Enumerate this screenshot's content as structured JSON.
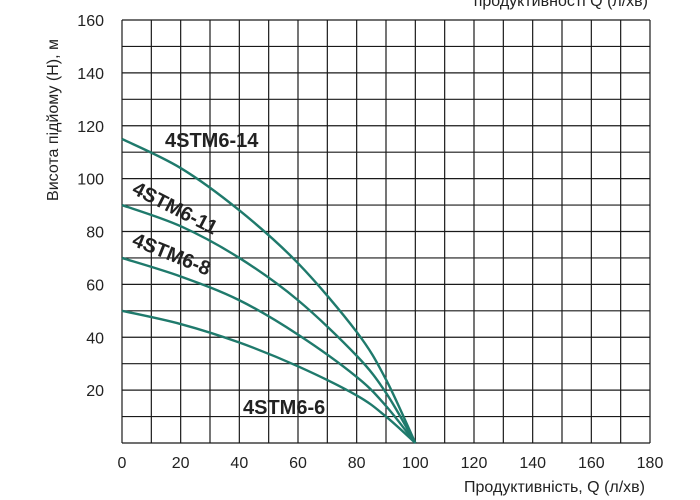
{
  "chart_data": {
    "type": "line",
    "title_partial": "продуктивності Q (л/хв)",
    "xlabel": "Продуктивність, Q (л/хв)",
    "ylabel": "Висота підйому (H), м",
    "xlim": [
      0,
      180
    ],
    "ylim": [
      0,
      160
    ],
    "x_ticks": [
      "0",
      "20",
      "40",
      "60",
      "80",
      "100",
      "120",
      "140",
      "160",
      "180"
    ],
    "y_ticks": [
      "20",
      "40",
      "60",
      "80",
      "100",
      "120",
      "140",
      "160"
    ],
    "grid": true,
    "line_color": "#1f7a6c",
    "series": [
      {
        "name": "4STM6-14",
        "x": [
          0,
          20,
          40,
          60,
          80,
          90,
          100
        ],
        "y": [
          115,
          104,
          88,
          68,
          42,
          24,
          0
        ]
      },
      {
        "name": "4STM6-11",
        "x": [
          0,
          20,
          40,
          60,
          80,
          90,
          100
        ],
        "y": [
          90,
          82,
          70,
          54,
          33,
          19,
          0
        ]
      },
      {
        "name": "4STM6-8",
        "x": [
          0,
          20,
          40,
          60,
          80,
          90,
          100
        ],
        "y": [
          70,
          63,
          54,
          41,
          25,
          14,
          0
        ]
      },
      {
        "name": "4STM6-6",
        "x": [
          0,
          20,
          40,
          60,
          80,
          90,
          100
        ],
        "y": [
          50,
          45,
          38,
          29,
          18,
          10,
          0
        ]
      }
    ]
  }
}
